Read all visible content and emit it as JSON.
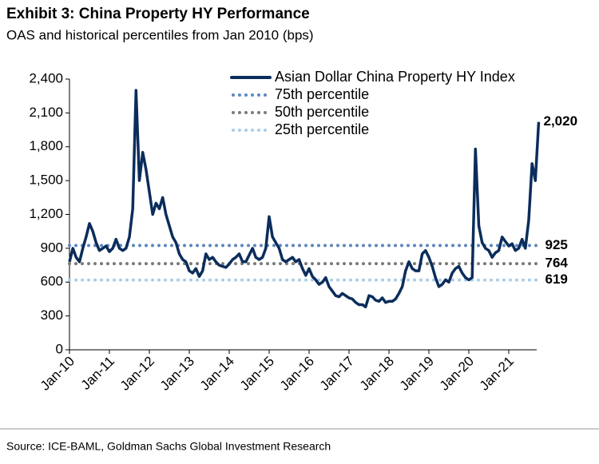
{
  "chart_data": {
    "type": "line",
    "title": "Exhibit 3: China Property HY Performance",
    "subtitle": "OAS and historical percentiles from Jan 2010 (bps)",
    "source": "Source: ICE-BAML, Goldman Sachs Global Investment Research",
    "categories": [
      "Jan-10",
      null,
      null,
      null,
      null,
      null,
      null,
      null,
      null,
      null,
      null,
      null,
      "Jan-11",
      null,
      null,
      null,
      null,
      null,
      null,
      null,
      null,
      null,
      null,
      null,
      "Jan-12",
      null,
      null,
      null,
      null,
      null,
      null,
      null,
      null,
      null,
      null,
      null,
      "Jan-13",
      null,
      null,
      null,
      null,
      null,
      null,
      null,
      null,
      null,
      null,
      null,
      "Jan-14",
      null,
      null,
      null,
      null,
      null,
      null,
      null,
      null,
      null,
      null,
      null,
      "Jan-15",
      null,
      null,
      null,
      null,
      null,
      null,
      null,
      null,
      null,
      null,
      null,
      "Jan-16",
      null,
      null,
      null,
      null,
      null,
      null,
      null,
      null,
      null,
      null,
      null,
      "Jan-17",
      null,
      null,
      null,
      null,
      null,
      null,
      null,
      null,
      null,
      null,
      null,
      "Jan-18",
      null,
      null,
      null,
      null,
      null,
      null,
      null,
      null,
      null,
      null,
      null,
      "Jan-19",
      null,
      null,
      null,
      null,
      null,
      null,
      null,
      null,
      null,
      null,
      null,
      "Jan-20",
      null,
      null,
      null,
      null,
      null,
      null,
      null,
      null,
      null,
      null,
      null,
      "Jan-21",
      null,
      null,
      null,
      null,
      null,
      null,
      null,
      null,
      null
    ],
    "series": [
      {
        "name": "Asian Dollar China Property HY Index",
        "color": "#0b2d5b",
        "values": [
          780,
          900,
          820,
          780,
          900,
          1000,
          1120,
          1050,
          950,
          880,
          900,
          920,
          870,
          900,
          980,
          900,
          880,
          900,
          1000,
          1250,
          2300,
          1500,
          1750,
          1600,
          1400,
          1200,
          1300,
          1250,
          1350,
          1200,
          1100,
          1000,
          950,
          850,
          800,
          780,
          700,
          680,
          720,
          650,
          700,
          850,
          800,
          820,
          780,
          750,
          740,
          730,
          760,
          800,
          820,
          850,
          780,
          780,
          840,
          900,
          820,
          800,
          820,
          900,
          1180,
          1000,
          950,
          900,
          800,
          780,
          800,
          820,
          780,
          800,
          720,
          660,
          720,
          650,
          620,
          580,
          600,
          640,
          560,
          520,
          480,
          470,
          500,
          480,
          460,
          450,
          420,
          400,
          400,
          380,
          480,
          470,
          440,
          430,
          460,
          420,
          430,
          430,
          450,
          500,
          560,
          700,
          780,
          720,
          700,
          700,
          850,
          880,
          820,
          740,
          640,
          560,
          580,
          620,
          600,
          680,
          720,
          740,
          680,
          640,
          620,
          640,
          1780,
          1100,
          950,
          900,
          880,
          820,
          860,
          880,
          1000,
          960,
          920,
          940,
          880,
          900,
          980,
          900,
          1150,
          1650,
          1500,
          2020
        ],
        "value_labels": [
          null,
          null,
          null,
          null,
          null,
          null,
          null,
          null,
          null,
          null,
          null,
          null,
          null,
          null,
          null,
          null,
          null,
          null,
          null,
          null,
          null,
          null,
          null,
          null,
          null,
          null,
          null,
          null,
          null,
          null,
          null,
          null,
          null,
          null,
          null,
          null,
          null,
          null,
          null,
          null,
          null,
          null,
          null,
          null,
          null,
          null,
          null,
          null,
          null,
          null,
          null,
          null,
          null,
          null,
          null,
          null,
          null,
          null,
          null,
          null,
          null,
          null,
          null,
          null,
          null,
          null,
          null,
          null,
          null,
          null,
          null,
          null,
          null,
          null,
          null,
          null,
          null,
          null,
          null,
          null,
          null,
          null,
          null,
          null,
          null,
          null,
          null,
          null,
          null,
          null,
          null,
          null,
          null,
          null,
          null,
          null,
          null,
          null,
          null,
          null,
          null,
          null,
          null,
          null,
          null,
          null,
          null,
          null,
          null,
          null,
          null,
          null,
          null,
          null,
          null,
          null,
          null,
          null,
          null,
          null,
          null,
          null,
          null,
          null,
          null,
          null,
          null,
          null,
          null,
          null,
          null,
          null,
          null,
          null,
          null,
          null,
          null,
          null,
          null,
          null,
          null,
          "2,020"
        ]
      }
    ],
    "reference_lines": [
      {
        "name": "75th percentile",
        "value": 925,
        "color": "#5b86c0"
      },
      {
        "name": "50th percentile",
        "value": 764,
        "color": "#7a7a7a"
      },
      {
        "name": "25th percentile",
        "value": 619,
        "color": "#a9cde9"
      }
    ],
    "ylim": [
      0,
      2400
    ],
    "yticks": [
      0,
      300,
      600,
      900,
      {
        "value": 1200,
        "label": "1,200"
      },
      {
        "value": 1500,
        "label": "1,500"
      },
      {
        "value": 1800,
        "label": "1,800"
      },
      {
        "value": 2100,
        "label": "2,100"
      },
      {
        "value": 2400,
        "label": "2,400"
      }
    ]
  }
}
